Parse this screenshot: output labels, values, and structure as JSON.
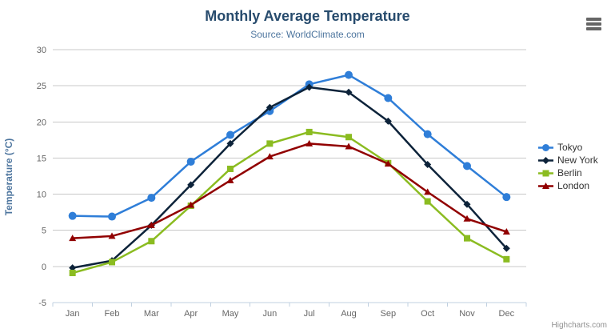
{
  "chart_data": {
    "type": "line",
    "title": "Monthly Average Temperature",
    "subtitle": "Source: WorldClimate.com",
    "xlabel": "",
    "ylabel": "Temperature (°C)",
    "ylim": [
      -5,
      30
    ],
    "yticks": [
      -5,
      0,
      5,
      10,
      15,
      20,
      25,
      30
    ],
    "grid": true,
    "legend_position": "right",
    "categories": [
      "Jan",
      "Feb",
      "Mar",
      "Apr",
      "May",
      "Jun",
      "Jul",
      "Aug",
      "Sep",
      "Oct",
      "Nov",
      "Dec"
    ],
    "series": [
      {
        "name": "Tokyo",
        "color": "#2f7ed8",
        "marker": "circle",
        "values": [
          7.0,
          6.9,
          9.5,
          14.5,
          18.2,
          21.5,
          25.2,
          26.5,
          23.3,
          18.3,
          13.9,
          9.6
        ]
      },
      {
        "name": "New York",
        "color": "#0d233a",
        "marker": "diamond",
        "values": [
          -0.2,
          0.8,
          5.7,
          11.3,
          17.0,
          22.0,
          24.8,
          24.1,
          20.1,
          14.1,
          8.6,
          2.5
        ]
      },
      {
        "name": "Berlin",
        "color": "#8bbc21",
        "marker": "square",
        "values": [
          -0.9,
          0.6,
          3.5,
          8.4,
          13.5,
          17.0,
          18.6,
          17.9,
          14.3,
          9.0,
          3.9,
          1.0
        ]
      },
      {
        "name": "London",
        "color": "#910000",
        "marker": "triangle",
        "values": [
          3.9,
          4.2,
          5.7,
          8.5,
          11.9,
          15.2,
          17.0,
          16.6,
          14.2,
          10.3,
          6.6,
          4.8
        ]
      }
    ]
  },
  "styles": {
    "grid_line_color": "#c8c8c8",
    "axis_line_color": "#c0d0e0",
    "tick_label_color": "#666666",
    "title_color": "#274b6d",
    "subtitle_color": "#4d759e",
    "axis_title_color": "#4d759e",
    "legend_text_color": "#333333",
    "menu_icon_color": "#666666",
    "credits_color": "#909090"
  },
  "credits": {
    "label": "Highcharts.com"
  }
}
